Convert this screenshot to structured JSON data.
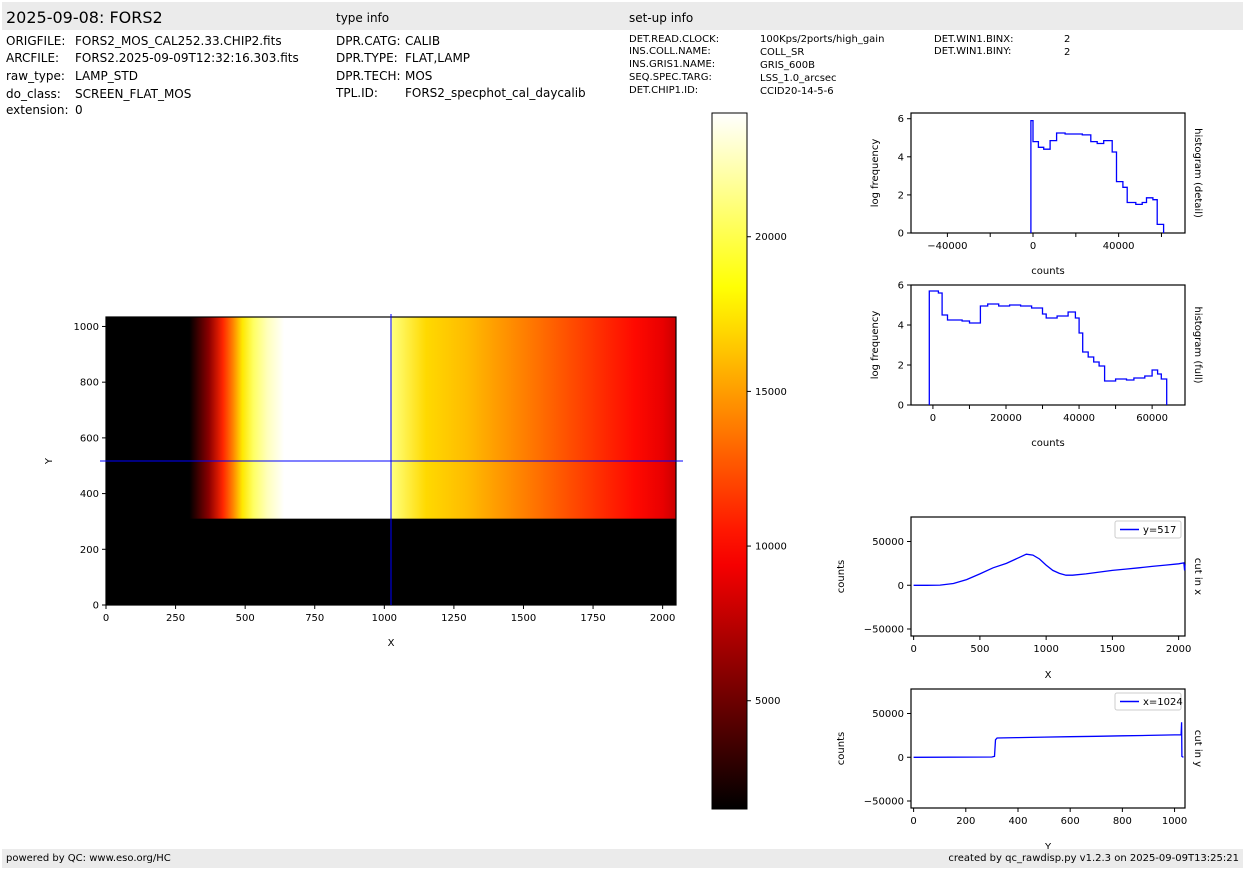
{
  "header": {
    "title": "2025-09-08: FORS2",
    "type_info_title": "type info",
    "setup_info_title": "set-up info"
  },
  "file_info": [
    {
      "key": "ORIGFILE:",
      "value": "FORS2_MOS_CAL252.33.CHIP2.fits"
    },
    {
      "key": "ARCFILE:",
      "value": "FORS2.2025-09-09T12:32:16.303.fits"
    },
    {
      "key": "raw_type:",
      "value": "LAMP_STD"
    },
    {
      "key": "do_class:",
      "value": "SCREEN_FLAT_MOS"
    },
    {
      "key": "extension:",
      "value": "0"
    }
  ],
  "type_info": [
    {
      "key": "DPR.CATG:",
      "value": "CALIB"
    },
    {
      "key": "DPR.TYPE:",
      "value": "FLAT,LAMP"
    },
    {
      "key": "DPR.TECH:",
      "value": "MOS"
    },
    {
      "key": "TPL.ID:",
      "value": "FORS2_specphot_cal_daycalib"
    }
  ],
  "setup_info": [
    {
      "key": "DET.READ.CLOCK:",
      "value": "100Kps/2ports/high_gain"
    },
    {
      "key": "INS.COLL.NAME:",
      "value": "COLL_SR"
    },
    {
      "key": "INS.GRIS1.NAME:",
      "value": "GRIS_600B"
    },
    {
      "key": "SEQ.SPEC.TARG:",
      "value": "LSS_1.0_arcsec"
    },
    {
      "key": "DET.CHIP1.ID:",
      "value": "CCID20-14-5-6"
    }
  ],
  "setup_info2": [
    {
      "key": "DET.WIN1.BINX:",
      "value": "2"
    },
    {
      "key": "DET.WIN1.BINY:",
      "value": "2"
    }
  ],
  "footer": {
    "left": "powered by QC: www.eso.org/HC",
    "right": "created by qc_rawdisp.py v1.2.3 on 2025-09-09T13:25:21"
  },
  "colors": {
    "line": "#0000ff",
    "band": "#ebebeb"
  },
  "chart_data": [
    {
      "type": "heatmap",
      "name": "image",
      "xlabel": "X",
      "ylabel": "Y",
      "xlim": [
        0,
        2048
      ],
      "ylim": [
        0,
        1034
      ],
      "x_ticks": [
        0,
        250,
        500,
        750,
        1000,
        1250,
        1500,
        1750,
        2000
      ],
      "y_ticks": [
        0,
        200,
        400,
        600,
        800,
        1000
      ],
      "crosshair": {
        "x": 1024,
        "y": 517
      },
      "illuminated_y_min": 310,
      "profile_x": [
        [
          0,
          0
        ],
        [
          250,
          100
        ],
        [
          300,
          900
        ],
        [
          370,
          6000
        ],
        [
          420,
          11000
        ],
        [
          455,
          14000
        ],
        [
          490,
          17500
        ],
        [
          530,
          20500
        ],
        [
          580,
          22500
        ],
        [
          640,
          24000
        ],
        [
          1020,
          24000
        ],
        [
          1030,
          21000
        ],
        [
          1150,
          17000
        ],
        [
          1300,
          16000
        ],
        [
          1400,
          15000
        ],
        [
          1500,
          14000
        ],
        [
          1600,
          13000
        ],
        [
          1700,
          12000
        ],
        [
          1800,
          11000
        ],
        [
          1900,
          10000
        ],
        [
          2000,
          9000
        ],
        [
          2048,
          8000
        ]
      ]
    },
    {
      "type": "colorbar",
      "name": "colorbar",
      "range": [
        1500,
        24000
      ],
      "ticks": [
        5000,
        10000,
        15000,
        20000
      ],
      "colormap": "hot"
    },
    {
      "type": "line",
      "name": "histogram-detail",
      "xlabel": "counts",
      "ylabel": "log frequency",
      "side_label": "histogram (detail)",
      "xlim": [
        -57000,
        71000
      ],
      "ylim": [
        0,
        6.3
      ],
      "x_ticks": [
        -40000,
        0,
        40000
      ],
      "y_ticks": [
        0,
        2,
        4,
        6
      ],
      "x_minor_ticks": [
        -20000,
        20000,
        60000
      ],
      "steps": [
        [
          -1000,
          0
        ],
        [
          -1000,
          5.9
        ],
        [
          0,
          4.8
        ],
        [
          2500,
          4.5
        ],
        [
          5000,
          4.4
        ],
        [
          8000,
          4.85
        ],
        [
          11000,
          5.25
        ],
        [
          15000,
          5.2
        ],
        [
          19000,
          5.2
        ],
        [
          23000,
          5.15
        ],
        [
          27000,
          4.8
        ],
        [
          30000,
          4.7
        ],
        [
          33000,
          4.85
        ],
        [
          37000,
          4.25
        ],
        [
          39000,
          2.7
        ],
        [
          42000,
          2.4
        ],
        [
          44000,
          1.6
        ],
        [
          48000,
          1.5
        ],
        [
          51000,
          1.6
        ],
        [
          53000,
          1.85
        ],
        [
          56000,
          1.75
        ],
        [
          58000,
          0.45
        ],
        [
          61000,
          0
        ]
      ]
    },
    {
      "type": "line",
      "name": "histogram-full",
      "xlabel": "counts",
      "ylabel": "log frequency",
      "side_label": "histogram (full)",
      "xlim": [
        -6000,
        69000
      ],
      "ylim": [
        0,
        6
      ],
      "x_ticks": [
        0,
        20000,
        40000,
        60000
      ],
      "y_ticks": [
        0,
        2,
        4,
        6
      ],
      "x_minor_ticks": [
        10000,
        30000,
        50000
      ],
      "steps": [
        [
          -1000,
          0
        ],
        [
          -1000,
          5.7
        ],
        [
          1500,
          5.6
        ],
        [
          2500,
          4.5
        ],
        [
          4000,
          4.25
        ],
        [
          8000,
          4.2
        ],
        [
          10000,
          4.1
        ],
        [
          13000,
          4.95
        ],
        [
          15000,
          5.05
        ],
        [
          18000,
          4.95
        ],
        [
          21000,
          5.0
        ],
        [
          24000,
          4.95
        ],
        [
          27000,
          4.85
        ],
        [
          30000,
          4.55
        ],
        [
          31000,
          4.35
        ],
        [
          34000,
          4.45
        ],
        [
          37000,
          4.65
        ],
        [
          39000,
          4.35
        ],
        [
          40000,
          3.6
        ],
        [
          41000,
          2.65
        ],
        [
          42500,
          2.4
        ],
        [
          44000,
          2.15
        ],
        [
          45500,
          1.95
        ],
        [
          47000,
          1.2
        ],
        [
          50000,
          1.3
        ],
        [
          53000,
          1.25
        ],
        [
          55000,
          1.35
        ],
        [
          58000,
          1.45
        ],
        [
          60000,
          1.75
        ],
        [
          61500,
          1.55
        ],
        [
          62500,
          1.3
        ],
        [
          64000,
          0
        ]
      ]
    },
    {
      "type": "line",
      "name": "cut-in-x",
      "xlabel": "X",
      "ylabel": "counts",
      "side_label": "cut in x",
      "legend": "y=517",
      "xlim": [
        -20,
        2048
      ],
      "ylim": [
        -58000,
        78000
      ],
      "x_ticks": [
        0,
        500,
        1000,
        1500,
        2000
      ],
      "y_ticks": [
        -50000,
        0,
        50000
      ],
      "points": [
        [
          0,
          0
        ],
        [
          100,
          0
        ],
        [
          200,
          200
        ],
        [
          300,
          2000
        ],
        [
          400,
          6500
        ],
        [
          500,
          13000
        ],
        [
          600,
          20000
        ],
        [
          700,
          25000
        ],
        [
          800,
          32000
        ],
        [
          850,
          35500
        ],
        [
          900,
          34500
        ],
        [
          950,
          30000
        ],
        [
          1000,
          23000
        ],
        [
          1050,
          17000
        ],
        [
          1100,
          13500
        ],
        [
          1150,
          11500
        ],
        [
          1200,
          11500
        ],
        [
          1300,
          13000
        ],
        [
          1400,
          15000
        ],
        [
          1500,
          17000
        ],
        [
          1600,
          18500
        ],
        [
          1700,
          20000
        ],
        [
          1800,
          21500
        ],
        [
          1900,
          23000
        ],
        [
          2000,
          24500
        ],
        [
          2040,
          25500
        ],
        [
          2045,
          17000
        ],
        [
          2048,
          24000
        ]
      ]
    },
    {
      "type": "line",
      "name": "cut-in-y",
      "xlabel": "Y",
      "ylabel": "counts",
      "side_label": "cut in y",
      "legend": "x=1024",
      "xlim": [
        -10,
        1040
      ],
      "ylim": [
        -58000,
        78000
      ],
      "x_ticks": [
        0,
        200,
        400,
        600,
        800,
        1000
      ],
      "y_ticks": [
        -50000,
        0,
        50000
      ],
      "points": [
        [
          0,
          0
        ],
        [
          300,
          300
        ],
        [
          310,
          1000
        ],
        [
          314,
          20000
        ],
        [
          320,
          22000
        ],
        [
          400,
          22500
        ],
        [
          500,
          23000
        ],
        [
          600,
          23500
        ],
        [
          700,
          24000
        ],
        [
          800,
          24500
        ],
        [
          900,
          25000
        ],
        [
          1000,
          25500
        ],
        [
          1025,
          25500
        ],
        [
          1027,
          40000
        ],
        [
          1028,
          1000
        ],
        [
          1034,
          0
        ]
      ]
    }
  ]
}
